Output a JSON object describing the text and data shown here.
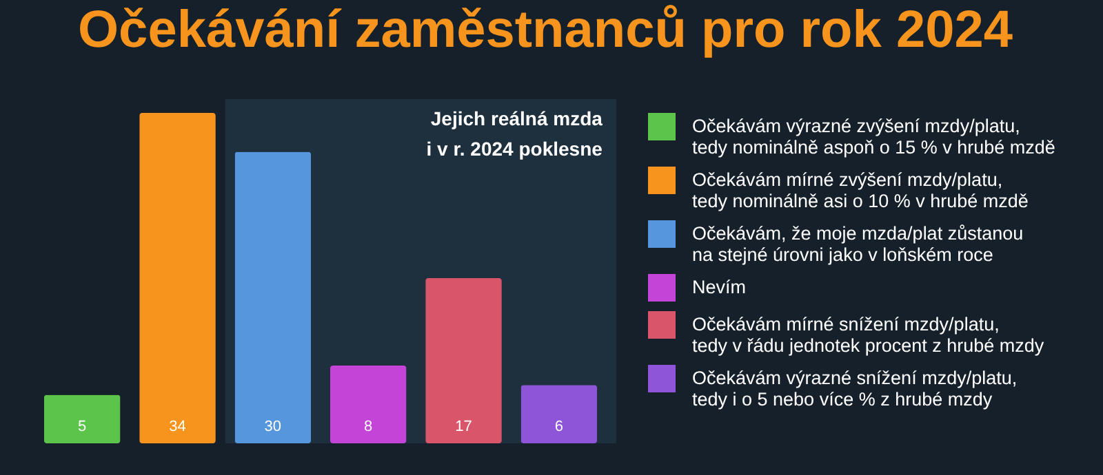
{
  "chart_data": {
    "type": "bar",
    "title": "Očekávání zaměstnanců pro rok 2024",
    "categories": [
      null,
      null,
      null,
      null,
      null,
      null
    ],
    "stacked": true,
    "series": [
      {
        "name": "Očekávám výrazné zvýšení mzdy/platu, tedy nominálně aspoň o 15 % v hrubé mzdě",
        "color": "#5cc44a",
        "values": [
          5,
          null,
          null,
          null,
          null,
          null
        ]
      },
      {
        "name": "Očekávám mírné zvýšení mzdy/platu, tedy nominálně asi o 10 % v hrubé mzdě",
        "color": "#f7941d",
        "values": [
          null,
          34,
          null,
          null,
          null,
          null
        ]
      },
      {
        "name": "Očekávám, že moje mzda/plat zůstanou na stejné úrovni jako v loňském roce",
        "color": "#5596dd",
        "values": [
          null,
          null,
          30,
          null,
          null,
          null
        ]
      },
      {
        "name": "Nevím",
        "color": "#c444d8",
        "values": [
          null,
          null,
          null,
          8,
          null,
          null
        ]
      },
      {
        "name": "Očekávám mírné snížení mzdy/platu, tedy v řádu jednotek procent z hrubé mzdy",
        "color": "#d9566a",
        "values": [
          null,
          null,
          null,
          null,
          17,
          null
        ]
      },
      {
        "name": "Očekávám výrazné snížení mzdy/platu, tedy i o 5 nebo více % z hrubé mzdy",
        "color": "#8e55d8",
        "values": [
          null,
          null,
          null,
          null,
          null,
          6
        ]
      }
    ],
    "data_labels": true,
    "annotations": [
      "Jejich reálná mzda i v r. 2024 poklesne"
    ],
    "legend": "right",
    "tick_labels": false
  }
}
